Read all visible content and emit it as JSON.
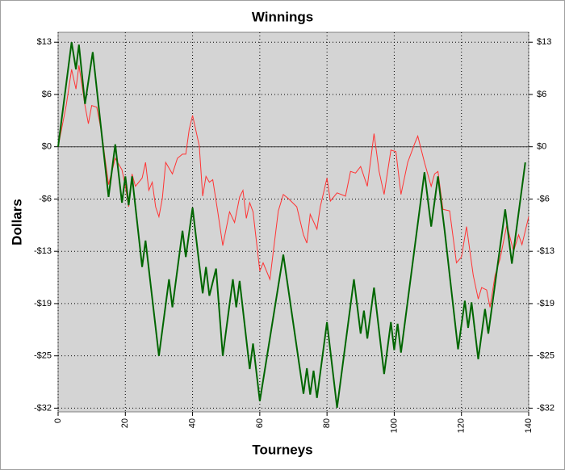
{
  "chart_data": {
    "type": "line",
    "title": "Winnings",
    "xlabel": "Tourneys",
    "ylabel": "Dollars",
    "xlim": [
      0,
      140
    ],
    "xticks": [
      0,
      20,
      40,
      60,
      80,
      100,
      120,
      140
    ],
    "ylim": [
      -32.2,
      13.9
    ],
    "yticks": [
      {
        "value": 12.7,
        "label": "$13"
      },
      {
        "value": 6.35,
        "label": "$6"
      },
      {
        "value": 0,
        "label": "$0"
      },
      {
        "value": -6.35,
        "label": "-$6"
      },
      {
        "value": -12.7,
        "label": "-$13"
      },
      {
        "value": -19.05,
        "label": "-$19"
      },
      {
        "value": -25.4,
        "label": "-$25"
      },
      {
        "value": -31.75,
        "label": "-$32"
      }
    ],
    "grid": true,
    "zero_line": true,
    "background": "#d4d4d4",
    "series": [
      {
        "color": "#ff3333",
        "width": 1,
        "x": [
          0,
          2.4,
          4,
          5.3,
          6.2,
          8,
          9,
          10,
          11.5,
          13,
          15,
          17,
          19,
          20,
          21,
          22,
          23,
          25,
          26,
          27,
          28,
          29,
          30,
          31,
          32,
          34,
          35.5,
          37,
          38,
          39,
          40,
          42,
          43,
          44,
          45,
          46,
          47.5,
          49,
          51,
          52.5,
          54,
          55,
          56,
          57,
          58,
          60,
          61,
          63,
          65.5,
          67,
          68.5,
          71,
          73,
          74,
          75,
          77,
          78,
          80,
          81,
          83,
          85.5,
          87,
          88.5,
          90,
          92,
          94,
          95.5,
          97,
          99,
          100.5,
          102,
          104,
          106,
          107,
          109,
          111,
          112,
          113,
          114.5,
          116.5,
          118.5,
          120,
          121.5,
          123.5,
          125,
          126,
          127.5,
          128.5,
          130,
          131.5,
          133.5,
          135.5,
          137,
          138,
          140
        ],
        "values": [
          0,
          5,
          9.4,
          7,
          9.9,
          5,
          2.8,
          5,
          4.8,
          1.6,
          -4.6,
          -1.4,
          -2.8,
          -4.8,
          -7.3,
          -3.3,
          -4.8,
          -3.8,
          -1.9,
          -5.3,
          -4.3,
          -7.3,
          -8.5,
          -6.3,
          -1.9,
          -3.3,
          -1.4,
          -0.9,
          -0.9,
          2.1,
          3.8,
          0.1,
          -6,
          -3.6,
          -4.3,
          -4,
          -7.9,
          -12,
          -7.9,
          -9.2,
          -6.1,
          -5.3,
          -8.7,
          -6.8,
          -7.9,
          -15.1,
          -14.1,
          -16.1,
          -7.8,
          -5.8,
          -6.3,
          -7.3,
          -10.7,
          -11.7,
          -8.2,
          -10,
          -7.3,
          -3.8,
          -6.6,
          -5.6,
          -6,
          -3,
          -3.2,
          -2.4,
          -4.8,
          1.6,
          -3,
          -5.8,
          -0.4,
          -0.6,
          -5.8,
          -1.9,
          0.3,
          1.3,
          -1.9,
          -4.8,
          -3.3,
          -3,
          -7.6,
          -7.8,
          -14.1,
          -13.4,
          -9.7,
          -15.6,
          -18.5,
          -17.1,
          -17.4,
          -19.5,
          -15.6,
          -13.6,
          -9.5,
          -12.7,
          -10.7,
          -11.9,
          -8.5
        ]
      },
      {
        "color": "#006600",
        "width": 2,
        "x": [
          0,
          4,
          5.3,
          6.2,
          8,
          10.3,
          15,
          17,
          19,
          20,
          21,
          22,
          25,
          26,
          30,
          33,
          34,
          37,
          38,
          40,
          43,
          44,
          45,
          47,
          49,
          52,
          53,
          54,
          57,
          58,
          60,
          67,
          73,
          74,
          75,
          76,
          77,
          80,
          83,
          88,
          90,
          91,
          92,
          94,
          97,
          99,
          100,
          101,
          102,
          109,
          111,
          113,
          115,
          119,
          121,
          122,
          123,
          125,
          127,
          128,
          133,
          135,
          139
        ],
        "values": [
          0,
          12.7,
          9.4,
          12.4,
          5.2,
          11.5,
          -6.1,
          0.3,
          -6.8,
          -3.6,
          -7.1,
          -3.6,
          -14.6,
          -11.4,
          -25.4,
          -16.1,
          -19.5,
          -10.2,
          -13.4,
          -7.4,
          -17.8,
          -14.6,
          -18.1,
          -14.8,
          -25.4,
          -16.1,
          -19.5,
          -16.3,
          -27,
          -23.9,
          -30.9,
          -13.1,
          -30,
          -26.9,
          -30.1,
          -27.2,
          -30.5,
          -21.3,
          -31.7,
          -16.1,
          -22.7,
          -19.9,
          -23.3,
          -17.1,
          -27.6,
          -21.3,
          -24.7,
          -21.5,
          -25,
          -3.1,
          -9.7,
          -3.6,
          -10.2,
          -24.6,
          -18.7,
          -22,
          -18.9,
          -25.8,
          -19.7,
          -22.7,
          -7.6,
          -14.2,
          -1.9
        ]
      }
    ]
  }
}
